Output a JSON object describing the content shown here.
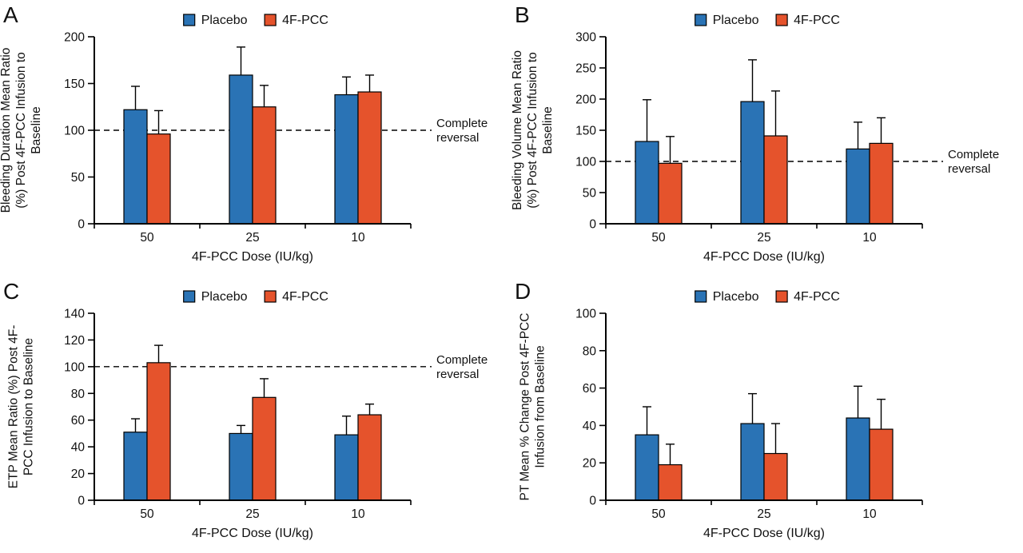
{
  "colors": {
    "placebo": "#2A73B5",
    "pcc": "#E5532C",
    "axis": "#000000",
    "text": "#111111",
    "background": "#ffffff"
  },
  "chart_data": [
    {
      "type": "bar",
      "panel": "A",
      "ylabel": "Bleeding Duration Mean Ratio (%) Post 4F-PCC Infusion to Baseline",
      "ylabel_lines": [
        "Bleeding Duration Mean Ratio",
        "(%) Post 4F-PCC Infusion to",
        "Baseline"
      ],
      "xlabel": "4F-PCC Dose (IU/kg)",
      "categories": [
        "50",
        "25",
        "10"
      ],
      "series": [
        {
          "name": "Placebo",
          "color_key": "placebo",
          "values": [
            122,
            159,
            138
          ],
          "errors_upper": [
            25,
            30,
            19
          ]
        },
        {
          "name": "4F-PCC",
          "color_key": "pcc",
          "values": [
            96,
            125,
            141
          ],
          "errors_upper": [
            25,
            23,
            18
          ]
        }
      ],
      "ylim": [
        0,
        200
      ],
      "yticks": [
        0,
        50,
        100,
        150,
        200
      ],
      "grid": false,
      "legend_position": "top",
      "reference_line": {
        "value": 100,
        "label_lines": [
          "Complete",
          "reversal"
        ]
      }
    },
    {
      "type": "bar",
      "panel": "B",
      "ylabel": "Bleeding Volume Mean Ratio (%) Post 4F-PCC Infusion to Baseline",
      "ylabel_lines": [
        "Bleeding Volume Mean Ratio",
        "(%) Post 4F-PCC Infusion to",
        "Baseline"
      ],
      "xlabel": "4F-PCC Dose (IU/kg)",
      "categories": [
        "50",
        "25",
        "10"
      ],
      "series": [
        {
          "name": "Placebo",
          "color_key": "placebo",
          "values": [
            132,
            196,
            120
          ],
          "errors_upper": [
            67,
            67,
            43
          ]
        },
        {
          "name": "4F-PCC",
          "color_key": "pcc",
          "values": [
            97,
            141,
            129
          ],
          "errors_upper": [
            43,
            72,
            41
          ]
        }
      ],
      "ylim": [
        0,
        300
      ],
      "yticks": [
        0,
        50,
        100,
        150,
        200,
        250,
        300
      ],
      "grid": false,
      "legend_position": "top",
      "reference_line": {
        "value": 100,
        "label_lines": [
          "Complete",
          "reversal"
        ]
      }
    },
    {
      "type": "bar",
      "panel": "C",
      "ylabel": "ETP Mean Ratio (%) Post 4F-PCC Infusion to Baseline",
      "ylabel_lines": [
        "ETP Mean Ratio (%) Post 4F-",
        "PCC Infusion to Baseline"
      ],
      "xlabel": "4F-PCC Dose (IU/kg)",
      "categories": [
        "50",
        "25",
        "10"
      ],
      "series": [
        {
          "name": "Placebo",
          "color_key": "placebo",
          "values": [
            51,
            50,
            49
          ],
          "errors_upper": [
            10,
            6,
            14
          ]
        },
        {
          "name": "4F-PCC",
          "color_key": "pcc",
          "values": [
            103,
            77,
            64
          ],
          "errors_upper": [
            13,
            14,
            8
          ]
        }
      ],
      "ylim": [
        0,
        140
      ],
      "yticks": [
        0,
        20,
        40,
        60,
        80,
        100,
        120,
        140
      ],
      "grid": false,
      "legend_position": "top",
      "reference_line": {
        "value": 100,
        "label_lines": [
          "Complete",
          "reversal"
        ]
      }
    },
    {
      "type": "bar",
      "panel": "D",
      "ylabel": "PT Mean % Change Post 4F-PCC Infusion from Baseline",
      "ylabel_lines": [
        "PT Mean % Change Post 4F-PCC",
        "Infusion from Baseline"
      ],
      "xlabel": "4F-PCC Dose (IU/kg)",
      "categories": [
        "50",
        "25",
        "10"
      ],
      "series": [
        {
          "name": "Placebo",
          "color_key": "placebo",
          "values": [
            35,
            41,
            44
          ],
          "errors_upper": [
            15,
            16,
            17
          ]
        },
        {
          "name": "4F-PCC",
          "color_key": "pcc",
          "values": [
            19,
            25,
            38
          ],
          "errors_upper": [
            11,
            16,
            16
          ]
        }
      ],
      "ylim": [
        0,
        100
      ],
      "yticks": [
        0,
        20,
        40,
        60,
        80,
        100
      ],
      "grid": false,
      "legend_position": "top",
      "reference_line": null
    }
  ]
}
